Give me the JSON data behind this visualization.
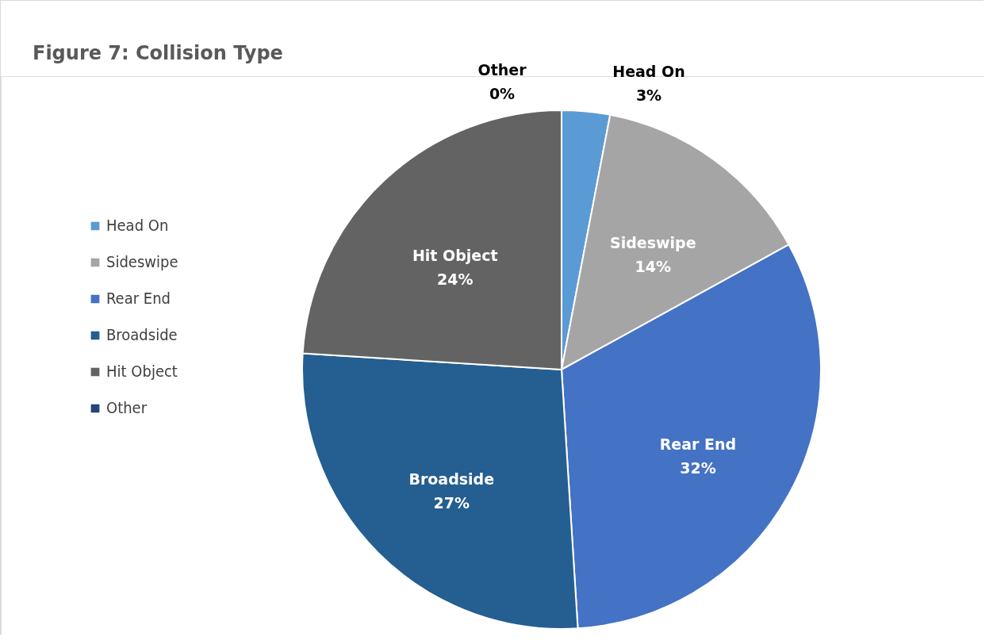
{
  "chart_data": {
    "type": "pie",
    "title": "Figure 7:\nCollision Type",
    "categories": [
      "Head On",
      "Sideswipe",
      "Rear End",
      "Broadside",
      "Hit Object",
      "Other"
    ],
    "values": [
      3,
      14,
      32,
      27,
      24,
      0
    ],
    "value_labels": [
      "3%",
      "14%",
      "32%",
      "27%",
      "24%",
      "0%"
    ],
    "colors": [
      "#5b9bd5",
      "#a5a5a5",
      "#4472c4",
      "#255e91",
      "#636363",
      "#264478"
    ],
    "legend": "left"
  }
}
